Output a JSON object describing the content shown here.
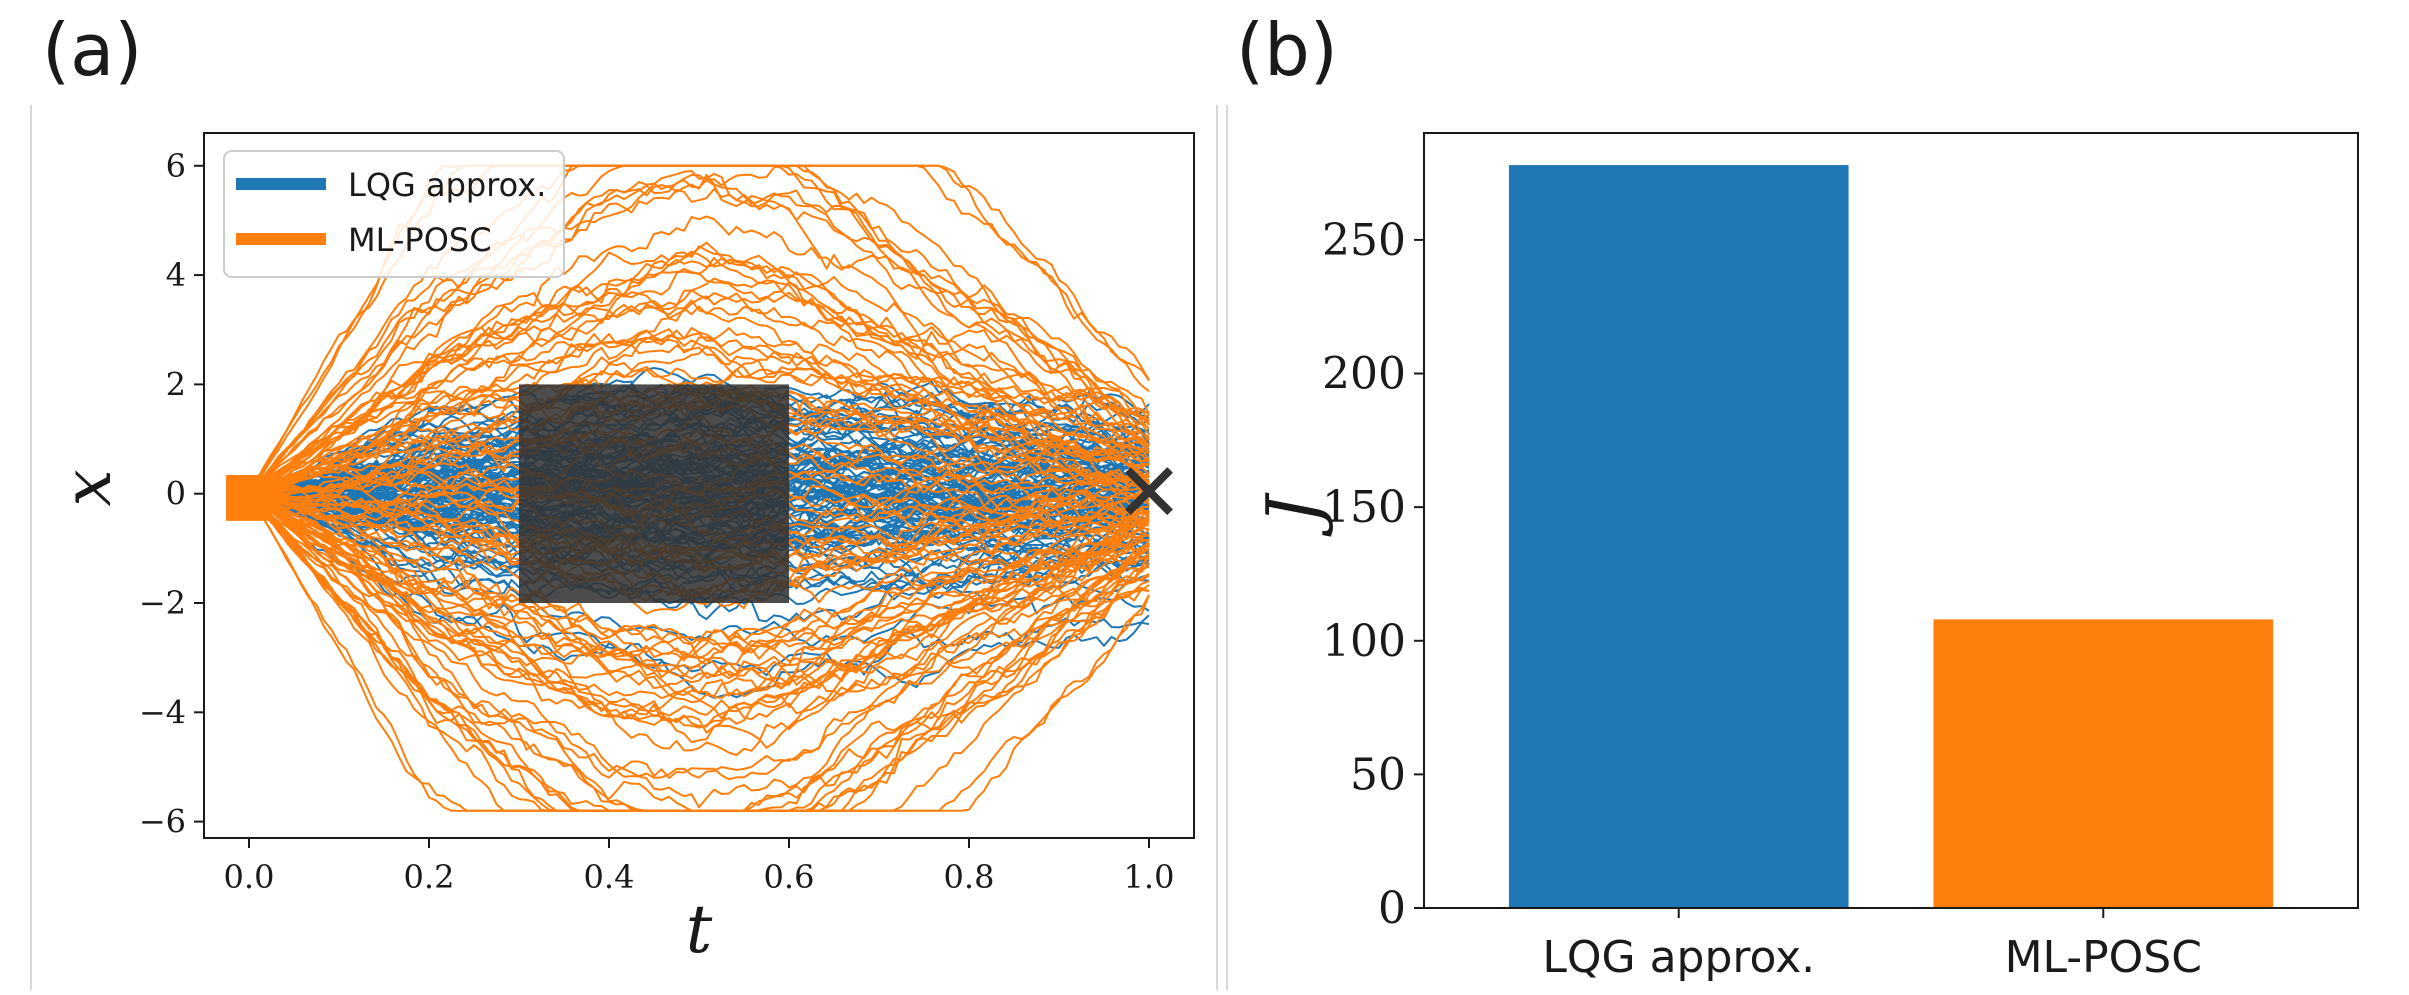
{
  "panels": {
    "a_label": "(a)",
    "b_label": "(b)"
  },
  "chart_data": [
    {
      "type": "line",
      "panel": "(a)",
      "xlabel": "t",
      "ylabel": "x",
      "xlim": [
        -0.05,
        1.05
      ],
      "ylim": [
        -6.3,
        6.6
      ],
      "xticks": [
        "0.0",
        "0.2",
        "0.4",
        "0.6",
        "0.8",
        "1.0"
      ],
      "xtick_values": [
        0,
        0.2,
        0.4,
        0.6,
        0.8,
        1.0
      ],
      "yticks": [
        "−6",
        "−4",
        "−2",
        "0",
        "2",
        "4",
        "6"
      ],
      "ytick_values": [
        -6,
        -4,
        -2,
        0,
        2,
        4,
        6
      ],
      "grid": false,
      "legend": {
        "placement": "top-left",
        "entries": [
          {
            "label": "LQG approx.",
            "color": "#1f77b4"
          },
          {
            "label": "ML-POSC",
            "color": "#ff7f0e"
          }
        ]
      },
      "series": [
        {
          "name": "LQG approx.",
          "color": "#1f77b4",
          "count": 100,
          "x0": 0,
          "spread_at_t": [
            [
              0,
              0
            ],
            [
              0.2,
              0.7
            ],
            [
              0.4,
              1.0
            ],
            [
              0.5,
              1.1
            ],
            [
              0.6,
              1.0
            ],
            [
              0.8,
              0.9
            ],
            [
              1.0,
              0.8
            ]
          ],
          "min_value": -4.2,
          "max_value": 2.3
        },
        {
          "name": "ML-POSC",
          "color": "#ff7f0e",
          "count": 100,
          "x0": 0,
          "spread_at_t": [
            [
              0,
              0
            ],
            [
              0.2,
              2.4
            ],
            [
              0.4,
              3.9
            ],
            [
              0.5,
              4.2
            ],
            [
              0.6,
              3.9
            ],
            [
              0.8,
              2.4
            ],
            [
              1.0,
              0.9
            ]
          ],
          "min_value": -5.8,
          "max_value": 6.0
        }
      ],
      "annotations": [
        {
          "type": "obstacle-box",
          "x": [
            0.3,
            0.6
          ],
          "y": [
            -2,
            2
          ],
          "color": "#333333"
        },
        {
          "type": "target-marker",
          "symbol": "✕",
          "x": 1.0,
          "y": 0,
          "color": "#333333"
        },
        {
          "type": "start-marker",
          "x": 0.0,
          "y": 0,
          "color": "#ff7f0e"
        }
      ]
    },
    {
      "type": "bar",
      "panel": "(b)",
      "ylabel": "J",
      "categories": [
        "LQG approx.",
        "ML-POSC"
      ],
      "values": [
        278,
        108
      ],
      "colors": [
        "#1f77b4",
        "#ff7f0e"
      ],
      "ylim": [
        0,
        290
      ],
      "yticks": [
        "0",
        "50",
        "100",
        "150",
        "200",
        "250"
      ],
      "ytick_values": [
        0,
        50,
        100,
        150,
        200,
        250
      ],
      "grid": false
    }
  ]
}
